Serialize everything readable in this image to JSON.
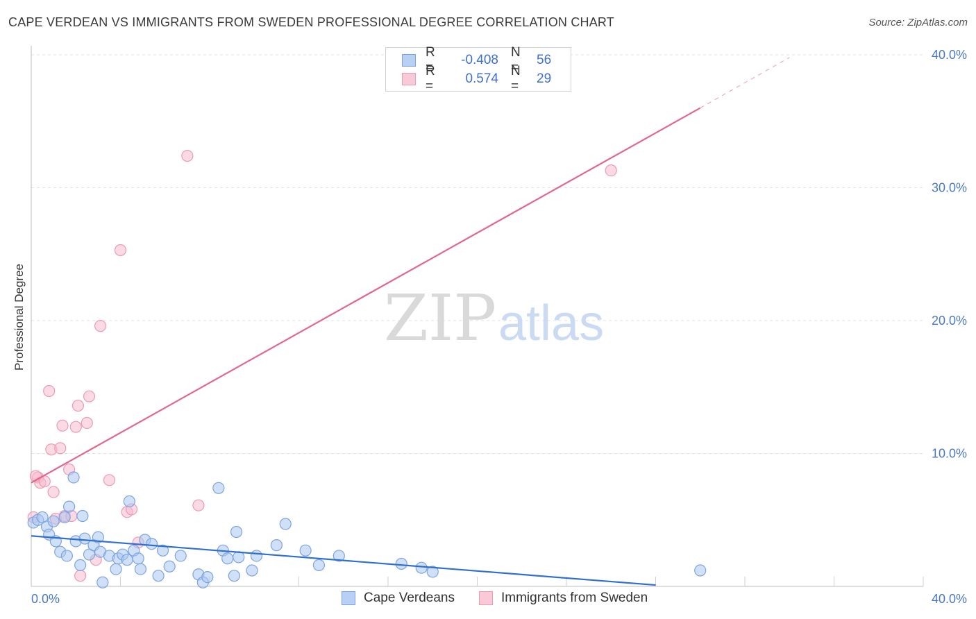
{
  "header": {
    "title": "CAPE VERDEAN VS IMMIGRANTS FROM SWEDEN PROFESSIONAL DEGREE CORRELATION CHART",
    "source": "Source: ZipAtlas.com"
  },
  "legend": {
    "rows": [
      {
        "r_label": "R =",
        "r_value": "-0.408",
        "n_label": "N =",
        "n_value": "56"
      },
      {
        "r_label": "R =",
        "r_value": "0.574",
        "n_label": "N =",
        "n_value": "29"
      }
    ]
  },
  "bottom_legend": {
    "series1": "Cape Verdeans",
    "series2": "Immigrants from Sweden"
  },
  "watermark": {
    "zip": "ZIP",
    "atlas": "atlas"
  },
  "colors": {
    "blue_fill": "#a9c6f0",
    "blue_stroke": "#7ba3e3",
    "blue_line": "#2f6fd0",
    "pink_fill": "#f6bccd",
    "pink_stroke": "#ee9ab3",
    "pink_line": "#e2668f",
    "tick_text": "#4a78c8",
    "grid": "#e2e2e2"
  },
  "chart_data": {
    "type": "scatter",
    "title": "CAPE VERDEAN VS IMMIGRANTS FROM SWEDEN PROFESSIONAL DEGREE CORRELATION CHART",
    "xlabel": "",
    "ylabel": "Professional Degree",
    "xlim": [
      0,
      40
    ],
    "ylim": [
      0,
      40
    ],
    "x_tick_labels": [
      "0.0%",
      "40.0%"
    ],
    "y_ticks": [
      10,
      20,
      30,
      40
    ],
    "y_tick_labels": [
      "10.0%",
      "20.0%",
      "30.0%",
      "40.0%"
    ],
    "grid": true,
    "legend_position": "top-center",
    "series": [
      {
        "name": "Cape Verdeans",
        "color": "#a9c6f0",
        "r": -0.408,
        "n": 56,
        "trend": {
          "x0": 0,
          "y0": 3.8,
          "x1": 28,
          "y1": 0.1
        },
        "points": [
          [
            0.1,
            4.8
          ],
          [
            0.3,
            5.0
          ],
          [
            0.5,
            5.2
          ],
          [
            0.7,
            4.5
          ],
          [
            0.8,
            3.9
          ],
          [
            1.0,
            4.9
          ],
          [
            1.1,
            3.4
          ],
          [
            1.3,
            2.6
          ],
          [
            1.5,
            5.2
          ],
          [
            1.6,
            2.3
          ],
          [
            1.7,
            6.0
          ],
          [
            1.9,
            8.2
          ],
          [
            2.0,
            3.4
          ],
          [
            2.2,
            1.6
          ],
          [
            2.3,
            5.3
          ],
          [
            2.4,
            3.6
          ],
          [
            2.6,
            2.4
          ],
          [
            2.8,
            3.1
          ],
          [
            3.0,
            3.7
          ],
          [
            3.1,
            2.6
          ],
          [
            3.2,
            0.3
          ],
          [
            3.5,
            2.3
          ],
          [
            3.8,
            1.3
          ],
          [
            3.9,
            2.1
          ],
          [
            4.1,
            2.4
          ],
          [
            4.3,
            2.0
          ],
          [
            4.4,
            6.4
          ],
          [
            4.6,
            2.7
          ],
          [
            4.8,
            2.1
          ],
          [
            4.9,
            1.3
          ],
          [
            5.1,
            3.5
          ],
          [
            5.4,
            3.2
          ],
          [
            5.7,
            0.8
          ],
          [
            5.9,
            2.7
          ],
          [
            6.2,
            1.5
          ],
          [
            6.7,
            2.3
          ],
          [
            7.5,
            0.9
          ],
          [
            7.7,
            0.3
          ],
          [
            7.9,
            0.7
          ],
          [
            8.4,
            7.4
          ],
          [
            8.6,
            2.7
          ],
          [
            8.8,
            2.1
          ],
          [
            9.1,
            0.8
          ],
          [
            9.2,
            4.1
          ],
          [
            9.3,
            2.2
          ],
          [
            9.9,
            1.2
          ],
          [
            10.1,
            2.3
          ],
          [
            11.0,
            3.1
          ],
          [
            11.4,
            4.7
          ],
          [
            12.3,
            2.7
          ],
          [
            12.9,
            1.6
          ],
          [
            13.8,
            2.3
          ],
          [
            16.6,
            1.7
          ],
          [
            17.5,
            1.4
          ],
          [
            18.0,
            1.1
          ],
          [
            30.0,
            1.2
          ]
        ]
      },
      {
        "name": "Immigrants from Sweden",
        "color": "#f6bccd",
        "r": 0.574,
        "n": 29,
        "trend": {
          "x0": 0,
          "y0": 7.8,
          "x1": 30.0,
          "y1": 36.0,
          "dash_x1": 34.0,
          "dash_y1": 39.8
        },
        "points": [
          [
            0.1,
            5.2
          ],
          [
            0.3,
            8.2
          ],
          [
            0.4,
            7.8
          ],
          [
            0.6,
            7.9
          ],
          [
            0.8,
            14.7
          ],
          [
            0.9,
            10.3
          ],
          [
            1.0,
            7.1
          ],
          [
            1.1,
            5.1
          ],
          [
            1.3,
            10.4
          ],
          [
            1.4,
            12.1
          ],
          [
            1.5,
            5.3
          ],
          [
            1.7,
            8.8
          ],
          [
            1.8,
            5.3
          ],
          [
            2.0,
            12.0
          ],
          [
            2.1,
            13.6
          ],
          [
            2.2,
            0.8
          ],
          [
            2.5,
            12.3
          ],
          [
            2.6,
            14.3
          ],
          [
            2.9,
            2.0
          ],
          [
            3.1,
            19.6
          ],
          [
            3.5,
            8.0
          ],
          [
            4.0,
            25.3
          ],
          [
            4.3,
            5.6
          ],
          [
            4.5,
            5.8
          ],
          [
            4.8,
            3.3
          ],
          [
            7.0,
            32.4
          ],
          [
            7.5,
            6.1
          ],
          [
            26.0,
            31.3
          ],
          [
            0.2,
            8.3
          ]
        ]
      }
    ]
  }
}
